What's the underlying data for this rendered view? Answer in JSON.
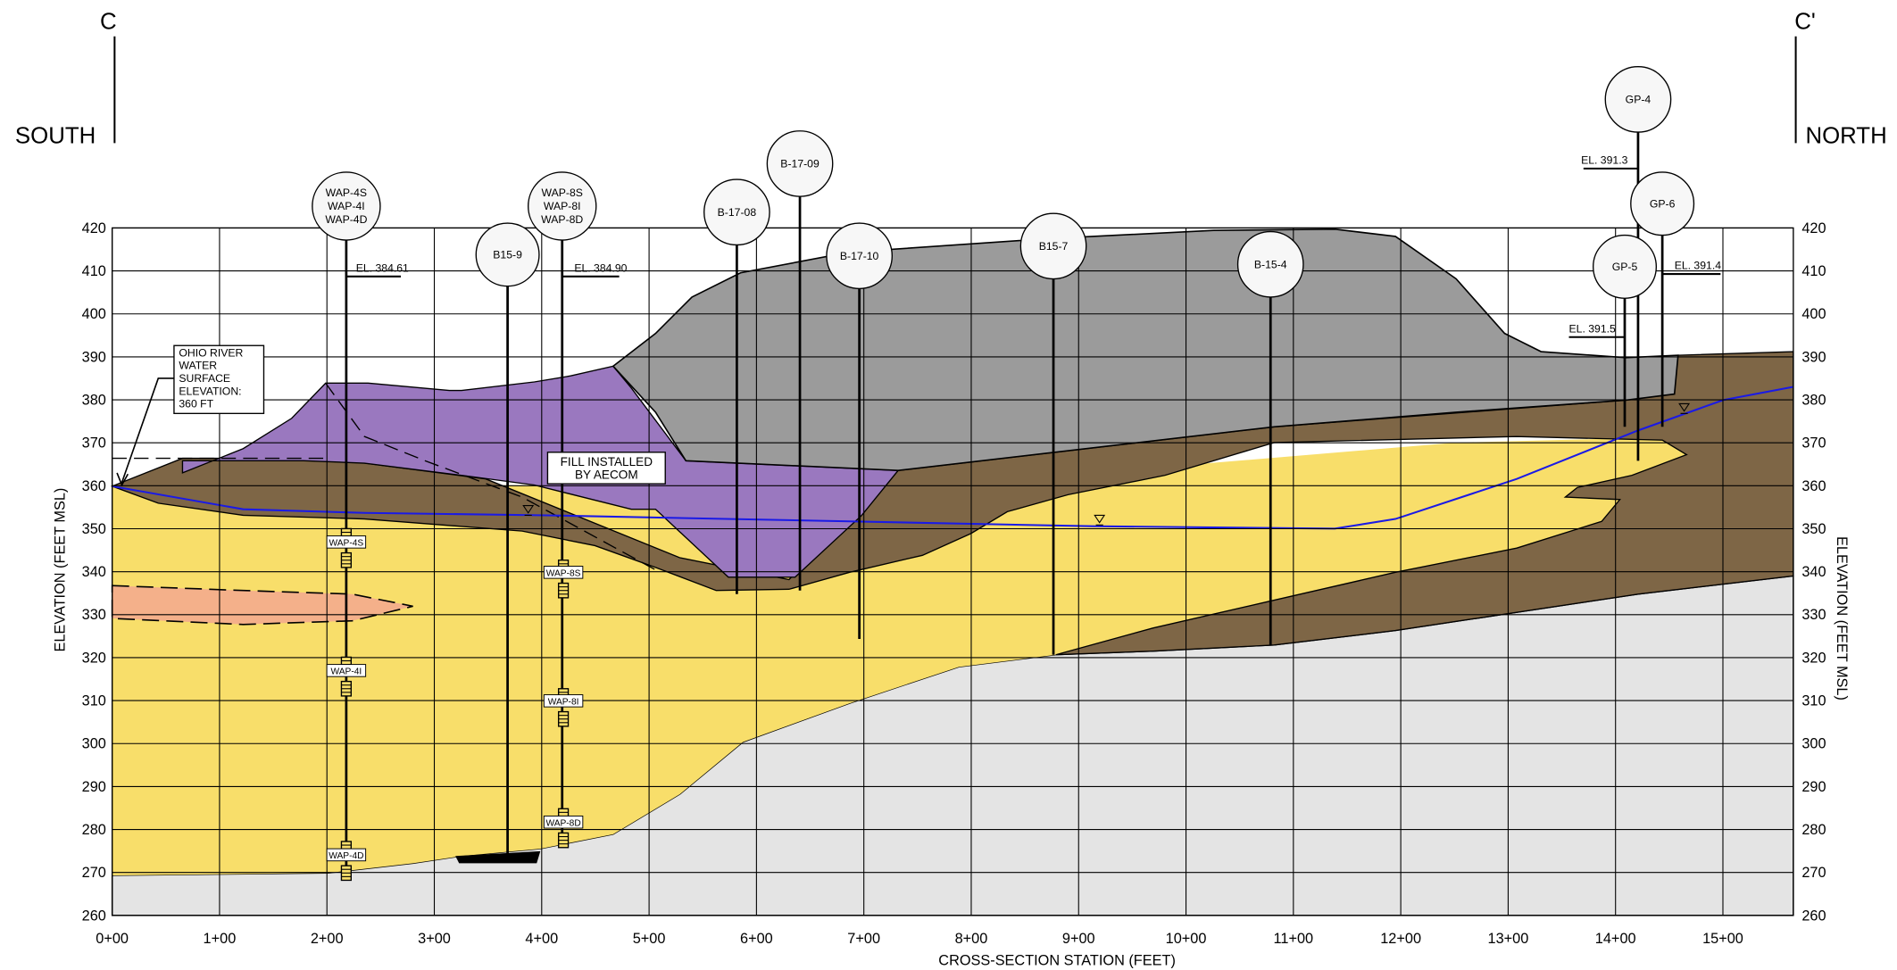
{
  "section": {
    "start": "C",
    "end": "C'",
    "start_direction": "SOUTH",
    "end_direction": "NORTH"
  },
  "axes": {
    "y_title": "ELEVATION (FEET MSL)",
    "y_title_right": "ELEVATION (FEET MSL)",
    "x_title": "CROSS-SECTION STATION (FEET)",
    "elevation_ticks": [
      420,
      410,
      400,
      390,
      380,
      370,
      360,
      350,
      340,
      330,
      320,
      310,
      300,
      290,
      280,
      270,
      260
    ],
    "station_ticks": [
      "0+00",
      "1+00",
      "2+00",
      "3+00",
      "4+00",
      "5+00",
      "6+00",
      "7+00",
      "8+00",
      "9+00",
      "10+00",
      "11+00",
      "12+00",
      "13+00",
      "14+00",
      "15+00"
    ]
  },
  "borings": [
    {
      "lines": [
        "WAP-4S",
        "WAP-4I",
        "WAP-4D"
      ]
    },
    {
      "lines": [
        "B15-9"
      ]
    },
    {
      "lines": [
        "WAP-8S",
        "WAP-8I",
        "WAP-8D"
      ]
    },
    {
      "lines": [
        "B-17-08"
      ]
    },
    {
      "lines": [
        "B-17-09"
      ]
    },
    {
      "lines": [
        "B-17-10"
      ]
    },
    {
      "lines": [
        "B15-7"
      ]
    },
    {
      "lines": [
        "B-15-4"
      ]
    },
    {
      "lines": [
        "GP-4"
      ]
    },
    {
      "lines": [
        "GP-6"
      ]
    },
    {
      "lines": [
        "GP-5"
      ]
    }
  ],
  "elevation_labels": [
    "EL. 384.61",
    "EL. 384.90",
    "EL. 391.3",
    "EL. 391.4",
    "EL. 391.5"
  ],
  "wells": [
    "WAP-4S",
    "WAP-4I",
    "WAP-4D",
    "WAP-8S",
    "WAP-8I",
    "WAP-8D"
  ],
  "annotations": {
    "river": [
      "OHIO RIVER",
      "WATER",
      "SURFACE",
      "ELEVATION:",
      "360 FT"
    ],
    "fill": [
      "FILL INSTALLED",
      "BY AECOM"
    ]
  }
}
